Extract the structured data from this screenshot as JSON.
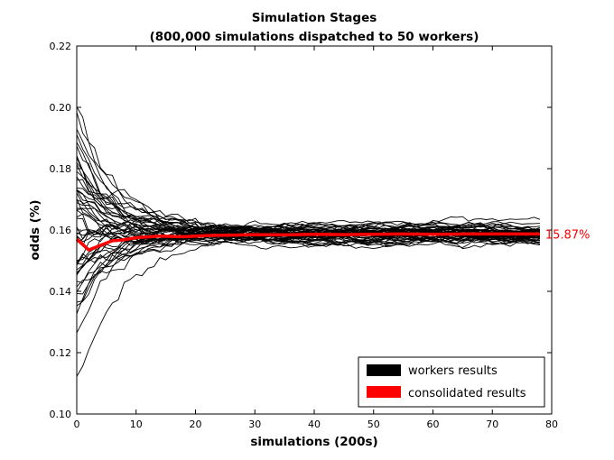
{
  "chart_data": {
    "type": "line",
    "title": "Simulation Stages",
    "subtitle": "(800,000 simulations dispatched to 50 workers)",
    "xlabel": "simulations (200s)",
    "ylabel": "odds (%)",
    "xlim": [
      0,
      80
    ],
    "ylim": [
      0.1,
      0.22
    ],
    "xticks": [
      0,
      10,
      20,
      30,
      40,
      50,
      60,
      70,
      80
    ],
    "xtick_labels": [
      "0",
      "10",
      "20",
      "30",
      "40",
      "50",
      "60",
      "70",
      "80"
    ],
    "yticks": [
      0.1,
      0.12,
      0.14,
      0.16,
      0.18,
      0.2,
      0.22
    ],
    "ytick_labels": [
      "0.10",
      "0.12",
      "0.14",
      "0.16",
      "0.18",
      "0.20",
      "0.22"
    ],
    "grid": false,
    "legend_position": "bottom-right",
    "legend": [
      {
        "label": "workers results",
        "color": "#000000"
      },
      {
        "label": "consolidated results",
        "color": "#ff0000"
      }
    ],
    "worker_count": 50,
    "worker_color": "#000000",
    "consolidated": {
      "name": "consolidated results",
      "color": "#ff0000",
      "x": [
        0,
        2,
        4,
        6,
        8,
        10,
        14,
        18,
        22,
        26,
        30,
        35,
        40,
        45,
        50,
        55,
        60,
        65,
        70,
        75,
        78
      ],
      "y": [
        0.157,
        0.1535,
        0.155,
        0.1565,
        0.1568,
        0.1575,
        0.158,
        0.1578,
        0.1582,
        0.1583,
        0.1585,
        0.1584,
        0.1586,
        0.1585,
        0.1586,
        0.1587,
        0.1586,
        0.1587,
        0.1587,
        0.1587,
        0.1587
      ]
    },
    "annotation": {
      "text": "15.87%",
      "x": 78,
      "y": 0.1587,
      "color": "#ff0000"
    }
  }
}
